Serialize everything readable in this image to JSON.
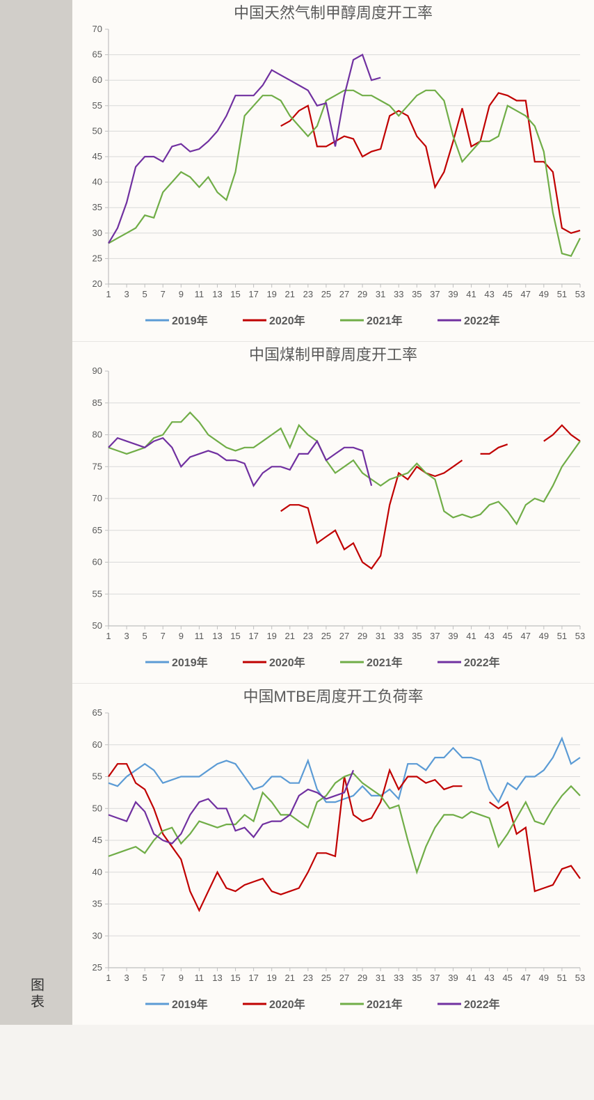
{
  "sidebar_label": "图表",
  "colors": {
    "s2019": "#5b9bd5",
    "s2020": "#c00000",
    "s2021": "#70ad47",
    "s2022": "#7030a0",
    "grid": "#d9d9d9",
    "axis": "#bfbfbf",
    "text": "#595959",
    "bg": "#fdfbf8"
  },
  "typography": {
    "title_fontsize": 22,
    "axis_fontsize": 13,
    "legend_fontsize": 16,
    "font_family": "SimHei"
  },
  "x_axis": {
    "min": 1,
    "max": 53,
    "ticks": [
      1,
      3,
      5,
      7,
      9,
      11,
      13,
      15,
      17,
      19,
      21,
      23,
      25,
      27,
      29,
      31,
      33,
      35,
      37,
      39,
      41,
      43,
      45,
      47,
      49,
      51,
      53
    ]
  },
  "legend": {
    "items": [
      {
        "label": "2019年",
        "color_key": "s2019"
      },
      {
        "label": "2020年",
        "color_key": "s2020"
      },
      {
        "label": "2021年",
        "color_key": "s2021"
      },
      {
        "label": "2022年",
        "color_key": "s2022"
      }
    ]
  },
  "charts": [
    {
      "title": "中国天然气制甲醇周度开工率",
      "ylim": [
        20,
        70
      ],
      "ytick_step": 5,
      "line_width": 2.2,
      "series": {
        "2019": [],
        "2020": [
          null,
          null,
          null,
          null,
          null,
          null,
          null,
          null,
          null,
          null,
          null,
          null,
          null,
          null,
          null,
          null,
          null,
          null,
          null,
          51,
          52,
          54,
          55,
          47,
          47,
          48,
          49,
          48.5,
          45,
          46,
          46.5,
          53,
          54,
          53,
          49,
          47,
          39,
          42,
          48,
          54.5,
          47,
          48,
          55,
          57.5,
          57,
          56,
          56,
          44,
          44,
          42,
          31,
          30,
          30.5
        ],
        "2021": [
          28,
          29,
          30,
          31,
          33.5,
          33,
          38,
          40,
          42,
          41,
          39,
          41,
          38,
          36.5,
          42,
          53,
          55,
          57,
          57,
          56,
          53,
          51,
          49,
          51,
          56,
          57,
          58,
          58,
          57,
          57,
          56,
          55,
          53,
          55,
          57,
          58,
          58,
          56,
          49,
          44,
          46,
          48,
          48,
          49,
          55,
          54,
          53,
          51,
          46,
          34,
          26,
          25.5,
          29
        ],
        "2022": [
          28,
          31,
          36,
          43,
          45,
          45,
          44,
          47,
          47.5,
          46,
          46.5,
          48,
          50,
          53,
          57,
          57,
          57,
          59,
          62,
          61,
          60,
          59,
          58,
          55,
          55.5,
          47,
          57,
          64,
          65,
          60,
          60.5
        ]
      }
    },
    {
      "title": "中国煤制甲醇周度开工率",
      "ylim": [
        50,
        90
      ],
      "ytick_step": 5,
      "line_width": 2.2,
      "series": {
        "2019": [],
        "2020": [
          null,
          null,
          null,
          null,
          null,
          null,
          null,
          null,
          null,
          null,
          null,
          null,
          null,
          null,
          null,
          null,
          null,
          null,
          null,
          68,
          69,
          69,
          68.5,
          63,
          64,
          65,
          62,
          63,
          60,
          59,
          61,
          69,
          74,
          73,
          75,
          74,
          73.5,
          74,
          75,
          76,
          null,
          77,
          77,
          78,
          78.5,
          null,
          78,
          null,
          79,
          80,
          81.5,
          80,
          79
        ],
        "2021": [
          78,
          77.5,
          77,
          77.5,
          78,
          79.5,
          80,
          82,
          82,
          83.5,
          82,
          80,
          79,
          78,
          77.5,
          78,
          78,
          79,
          80,
          81,
          78,
          81.5,
          80,
          79,
          76,
          74,
          75,
          76,
          74,
          73,
          72,
          73,
          73.5,
          74,
          75.5,
          74,
          73,
          68,
          67,
          67.5,
          67,
          67.5,
          69,
          69.5,
          68,
          66,
          69,
          70,
          69.5,
          72,
          75,
          77,
          79
        ],
        "2022": [
          78,
          79.5,
          79,
          78.5,
          78,
          79,
          79.5,
          78,
          75,
          76.5,
          77,
          77.5,
          77,
          76,
          76,
          75.5,
          72,
          74,
          75,
          75,
          74.5,
          77,
          77,
          79,
          76,
          77,
          78,
          78,
          77.5,
          72
        ]
      }
    },
    {
      "title": "中国MTBE周度开工负荷率",
      "ylim": [
        25,
        65
      ],
      "ytick_step": 5,
      "line_width": 2.2,
      "series": {
        "2019": [
          54,
          53.5,
          55,
          56,
          57,
          56,
          54,
          54.5,
          55,
          55,
          55,
          56,
          57,
          57.5,
          57,
          55,
          53,
          53.5,
          55,
          55,
          54,
          54,
          57.5,
          53,
          51,
          51,
          51.5,
          52,
          53.5,
          52,
          52,
          53,
          51.5,
          57,
          57,
          56,
          58,
          58,
          59.5,
          58,
          58,
          57.5,
          53,
          51,
          54,
          53,
          55,
          55,
          56,
          58,
          61,
          57,
          58
        ],
        "2020": [
          55,
          57,
          57,
          54,
          53,
          50,
          46,
          44,
          42,
          37,
          34,
          37,
          40,
          37.5,
          37,
          38,
          38.5,
          39,
          37,
          36.5,
          37,
          37.5,
          40,
          43,
          43,
          42.5,
          55,
          49,
          48,
          48.5,
          51,
          56,
          53,
          55,
          55,
          54,
          54.5,
          53,
          53.5,
          53.5,
          null,
          null,
          51,
          50,
          51,
          46,
          47,
          37,
          37.5,
          38,
          40.5,
          41,
          39
        ],
        "2021": [
          42.5,
          43,
          43.5,
          44,
          43,
          45,
          46.5,
          47,
          44.5,
          46,
          48,
          47.5,
          47,
          47.5,
          47.5,
          49,
          48,
          52.5,
          51,
          49,
          49,
          48,
          47,
          51,
          52,
          54,
          55,
          55.5,
          54,
          53,
          52,
          50,
          50.5,
          45,
          40,
          44,
          47,
          49,
          49,
          48.5,
          49.5,
          49,
          48.5,
          44,
          46,
          48.5,
          51,
          48,
          47.5,
          50,
          52,
          53.5,
          52
        ],
        "2022": [
          49,
          48.5,
          48,
          51,
          49.5,
          46,
          45,
          44.5,
          46,
          49,
          51,
          51.5,
          50,
          50,
          46.5,
          47,
          45.5,
          47.5,
          48,
          48,
          49,
          52,
          53,
          52.5,
          51.5,
          52,
          52.5,
          56
        ]
      }
    }
  ]
}
